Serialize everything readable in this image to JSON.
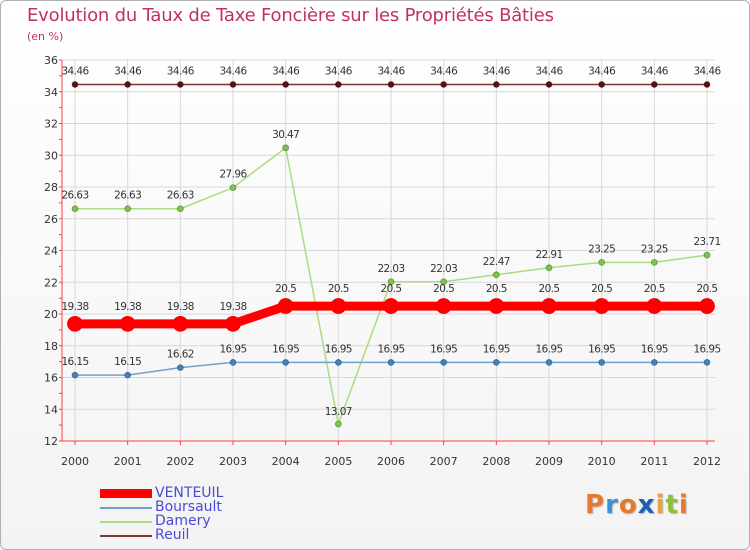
{
  "header": {
    "title": "Evolution du Taux de Taxe Foncière sur les Propriétés Bâties",
    "unit": "(en %)"
  },
  "logo": {
    "text": "Proxiti",
    "letters": [
      {
        "ch": "P",
        "color": "#e8792a"
      },
      {
        "ch": "r",
        "color": "#3d8fd6"
      },
      {
        "ch": "o",
        "color": "#e8792a"
      },
      {
        "ch": "x",
        "color": "#1e5fb4"
      },
      {
        "ch": "i",
        "color": "#e9a13b"
      },
      {
        "ch": "t",
        "color": "#8fbf3f"
      },
      {
        "ch": "i",
        "color": "#e8792a"
      }
    ]
  },
  "chart_data": {
    "type": "line",
    "title": "Evolution du Taux de Taxe Foncière sur les Propriétés Bâties",
    "ylabel": "(en %)",
    "xlabel": "",
    "ylim": [
      12,
      36
    ],
    "yticks": [
      12,
      14,
      16,
      18,
      20,
      22,
      24,
      26,
      28,
      30,
      32,
      34,
      36
    ],
    "grid": true,
    "legend_position": "bottom-left",
    "categories": [
      "2000",
      "2001",
      "2002",
      "2003",
      "2004",
      "2005",
      "2006",
      "2007",
      "2008",
      "2009",
      "2010",
      "2011",
      "2012"
    ],
    "series": [
      {
        "name": "Reuil",
        "color": "#7a3535",
        "marker": "#5a1010",
        "values": [
          34.46,
          34.46,
          34.46,
          34.46,
          34.46,
          34.46,
          34.46,
          34.46,
          34.46,
          34.46,
          34.46,
          34.46,
          34.46
        ],
        "labels": [
          "34.46",
          "34.46",
          "34.46",
          "34.46",
          "34.46",
          "34.46",
          "34.46",
          "34.46",
          "34.46",
          "34.46",
          "34.46",
          "34.46",
          "34.46"
        ]
      },
      {
        "name": "Damery",
        "color": "#a9dc83",
        "marker": "#78c840",
        "values": [
          26.63,
          26.63,
          26.63,
          27.96,
          30.47,
          13.07,
          22.03,
          22.03,
          22.47,
          22.91,
          23.25,
          23.25,
          23.71
        ],
        "labels": [
          "26.63",
          "26.63",
          "26.63",
          "27.96",
          "30.47",
          "13.07",
          "22.03",
          "22.03",
          "22.47",
          "22.91",
          "23.25",
          "23.25",
          "23.71"
        ]
      },
      {
        "name": "VENTEUIL",
        "color": "#ff0000",
        "marker": "#ff0000",
        "values": [
          19.38,
          19.38,
          19.38,
          19.38,
          20.5,
          20.5,
          20.5,
          20.5,
          20.5,
          20.5,
          20.5,
          20.5,
          20.5
        ],
        "labels": [
          "19.38",
          "19.38",
          "19.38",
          "19.38",
          "20.5",
          "20.5",
          "20.5",
          "20.5",
          "20.5",
          "20.5",
          "20.5",
          "20.5",
          "20.5"
        ]
      },
      {
        "name": "Boursault",
        "color": "#6fa1cc",
        "marker": "#3f82c0",
        "values": [
          16.15,
          16.15,
          16.62,
          16.95,
          16.95,
          16.95,
          16.95,
          16.95,
          16.95,
          16.95,
          16.95,
          16.95,
          16.95
        ],
        "labels": [
          "16.15",
          "16.15",
          "16.62",
          "16.95",
          "16.95",
          "16.95",
          "16.95",
          "16.95",
          "16.95",
          "16.95",
          "16.95",
          "16.95",
          "16.95"
        ]
      }
    ]
  },
  "legend": {
    "items": [
      {
        "label": "VENTEUIL",
        "color": "#ff0000"
      },
      {
        "label": "Boursault",
        "color": "#6fa1cc"
      },
      {
        "label": "Damery",
        "color": "#a9dc83"
      },
      {
        "label": "Reuil",
        "color": "#7a3535"
      }
    ]
  }
}
